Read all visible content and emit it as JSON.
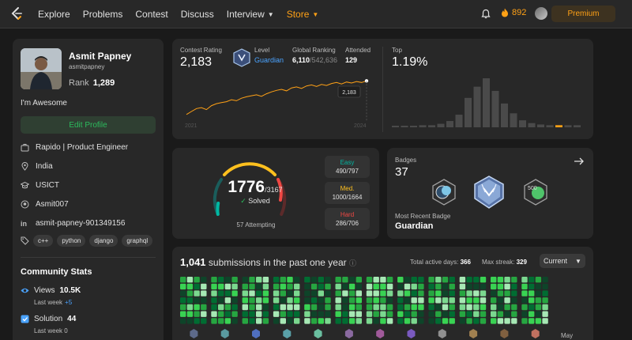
{
  "nav": {
    "links": [
      "Explore",
      "Problems",
      "Contest",
      "Discuss"
    ],
    "interview": "Interview",
    "store": "Store",
    "streak": "892",
    "premium": "Premium"
  },
  "profile": {
    "name": "Asmit Papney",
    "handle": "asmitpapney",
    "rank_label": "Rank",
    "rank_value": "1,289",
    "about": "I'm Awesome",
    "edit_label": "Edit Profile",
    "company": "Rapido | Product Engineer",
    "location": "India",
    "school": "USICT",
    "github": "Asmit007",
    "linkedin": "asmit-papney-901349156",
    "skills": [
      "c++",
      "python",
      "django",
      "graphql"
    ]
  },
  "community": {
    "title": "Community Stats",
    "views_label": "Views",
    "views_value": "10.5K",
    "views_week": "Last week",
    "views_delta": "+5",
    "solution_label": "Solution",
    "solution_value": "44",
    "solution_week": "Last week 0"
  },
  "contest": {
    "rating_label": "Contest Rating",
    "rating": "2,183",
    "level_label": "Level",
    "level": "Guardian",
    "global_label": "Global Ranking",
    "global_rank": "6,110",
    "global_total": "/542,636",
    "attended_label": "Attended",
    "attended": "129",
    "top_label": "Top",
    "top": "1.19%",
    "tooltip": "2,183",
    "year_start": "2021",
    "year_end": "2024",
    "rating_series": [
      1500,
      1560,
      1620,
      1640,
      1600,
      1680,
      1720,
      1740,
      1760,
      1800,
      1780,
      1830,
      1860,
      1880,
      1900,
      1870,
      1920,
      1960,
      1990,
      2010,
      1980,
      2040,
      2060,
      2030,
      2080,
      2100,
      2070,
      2110,
      2090,
      2130,
      2150,
      2120,
      2160,
      2140,
      2170,
      2150,
      2183
    ],
    "histogram": [
      2,
      2,
      2,
      3,
      3,
      5,
      9,
      18,
      42,
      58,
      70,
      52,
      34,
      20,
      10,
      6,
      4,
      3,
      3,
      3,
      3
    ],
    "highlight_index": 18
  },
  "colors": {
    "accent": "#ffa116",
    "easy": "#00b8a3",
    "medium": "#ffc01e",
    "hard": "#ef4743",
    "green": "#2cbb5d",
    "blue": "#4aa3ff"
  },
  "solved": {
    "solved": "1776",
    "total": "/3167",
    "solved_label": "Solved",
    "attempting": "57 Attempting",
    "easy_label": "Easy",
    "easy": "490/797",
    "medium_label": "Med.",
    "medium": "1000/1664",
    "hard_label": "Hard",
    "hard": "286/706"
  },
  "badges": {
    "title": "Badges",
    "count": "37",
    "recent_label": "Most Recent Badge",
    "recent": "Guardian"
  },
  "submissions": {
    "count": "1,041",
    "label": "submissions in the past one year",
    "active_label": "Total active days:",
    "active": "366",
    "streak_label": "Max streak:",
    "streak": "329",
    "current": "Current",
    "month_label": "May"
  }
}
